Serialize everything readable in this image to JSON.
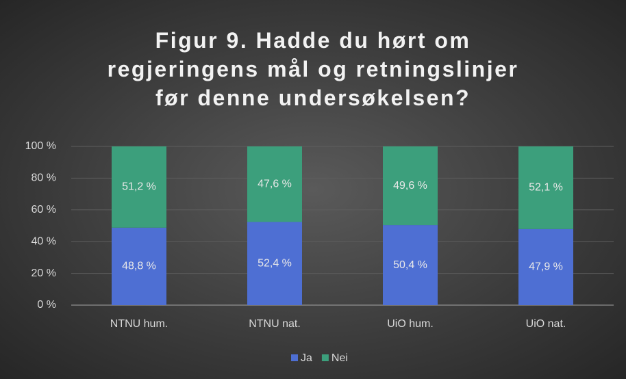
{
  "chart_data": {
    "type": "stacked_bar",
    "title": "Figur 9. Hadde du hørt om regjeringens mål og retningslinjer før denne undersøkelsen?",
    "categories": [
      "NTNU hum.",
      "NTNU nat.",
      "UiO hum.",
      "UiO nat."
    ],
    "series": [
      {
        "name": "Ja",
        "color": "#4e6fd3",
        "values": [
          48.8,
          52.4,
          50.4,
          47.9
        ],
        "value_labels": [
          "48,8 %",
          "52,4 %",
          "50,4 %",
          "47,9 %"
        ]
      },
      {
        "name": "Nei",
        "color": "#3c9f7c",
        "values": [
          51.2,
          47.6,
          49.6,
          52.1
        ],
        "value_labels": [
          "51,2 %",
          "47,6 %",
          "49,6 %",
          "52,1 %"
        ]
      }
    ],
    "ylim": [
      0,
      100
    ],
    "yticks": [
      {
        "value": 0,
        "label": "0 %"
      },
      {
        "value": 20,
        "label": "20 %"
      },
      {
        "value": 40,
        "label": "40 %"
      },
      {
        "value": 60,
        "label": "60 %"
      },
      {
        "value": 80,
        "label": "80 %"
      },
      {
        "value": 100,
        "label": "100 %"
      }
    ],
    "grid": true,
    "legend": "bottom"
  }
}
